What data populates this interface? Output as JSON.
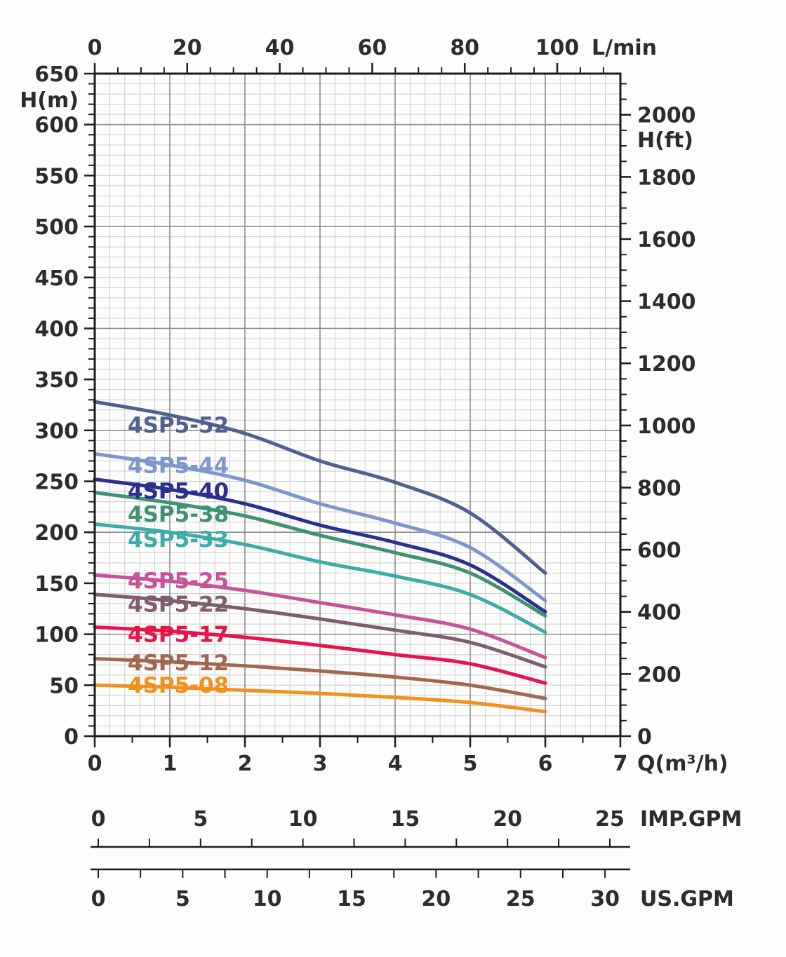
{
  "chart_data": {
    "type": "line",
    "title": "",
    "x_label": "Q(m³/h)",
    "x_values": [
      0,
      1,
      2,
      3,
      4,
      5,
      6
    ],
    "series": [
      {
        "name": "4SP5-52",
        "color": "#50618f",
        "heads_m": [
          328,
          315,
          297,
          270,
          249,
          219,
          160
        ]
      },
      {
        "name": "4SP5-44",
        "color": "#7d97cd",
        "heads_m": [
          277,
          266,
          251,
          228,
          209,
          185,
          133
        ]
      },
      {
        "name": "4SP5-40",
        "color": "#2b2f8e",
        "heads_m": [
          252,
          242,
          228,
          207,
          190,
          168,
          122
        ]
      },
      {
        "name": "4SP5-38",
        "color": "#3e9273",
        "heads_m": [
          239,
          229,
          216,
          197,
          180,
          160,
          118
        ]
      },
      {
        "name": "4SP5-33",
        "color": "#3caca9",
        "heads_m": [
          208,
          200,
          188,
          171,
          157,
          139,
          102
        ]
      },
      {
        "name": "4SP5-25",
        "color": "#c65399",
        "heads_m": [
          158,
          152,
          143,
          131,
          119,
          105,
          77
        ]
      },
      {
        "name": "4SP5-22",
        "color": "#805d6e",
        "heads_m": [
          139,
          133,
          125,
          115,
          104,
          92,
          68
        ]
      },
      {
        "name": "4SP5-17",
        "color": "#e51549",
        "heads_m": [
          107,
          103,
          97,
          89,
          80,
          71,
          52
        ]
      },
      {
        "name": "4SP5-12",
        "color": "#a2674f",
        "heads_m": [
          76,
          73,
          69,
          64,
          58,
          50,
          37
        ]
      },
      {
        "name": "4SP5-08",
        "color": "#f2911d",
        "heads_m": [
          50,
          48,
          45,
          42,
          38,
          33,
          24
        ]
      }
    ],
    "axes": {
      "top": {
        "unit": "L/min",
        "labeled_ticks": [
          0,
          20,
          40,
          60,
          80,
          100
        ],
        "minor_step": 5,
        "minor_max": 110
      },
      "left": {
        "unit": "H(m)",
        "min": 0,
        "max": 650,
        "labeled_step": 50,
        "minor_step": 10
      },
      "right": {
        "unit": "H(ft)",
        "labeled_ticks": [
          0,
          200,
          400,
          600,
          800,
          1000,
          1200,
          1400,
          1600,
          1800,
          2000
        ],
        "minor_step": 50,
        "minor_max": 2100
      },
      "bottom": {
        "unit": "Q(m³/h)",
        "min": 0,
        "max": 7,
        "labeled_step": 1,
        "minor_step": 0.5
      },
      "imp_gpm": {
        "unit": "IMP.GPM",
        "labeled_ticks": [
          0,
          5,
          10,
          15,
          20,
          25
        ],
        "minor_step": 2.5,
        "max": 25
      },
      "us_gpm": {
        "unit": "US.GPM",
        "labeled_ticks": [
          0,
          5,
          10,
          15,
          20,
          25,
          30
        ],
        "minor_step": 2.5,
        "max": 30
      }
    },
    "grid": {
      "minor_q_step": 0.2,
      "minor_h_step": 10,
      "major_q_step": 1,
      "major_h_step": 100
    },
    "styles": {
      "axis_color": "#1c1c1c",
      "text_color": "#2c2c2c",
      "grid_minor": "#cccccc",
      "grid_major": "#8d8d8d",
      "background": "#fdfdfd"
    }
  }
}
